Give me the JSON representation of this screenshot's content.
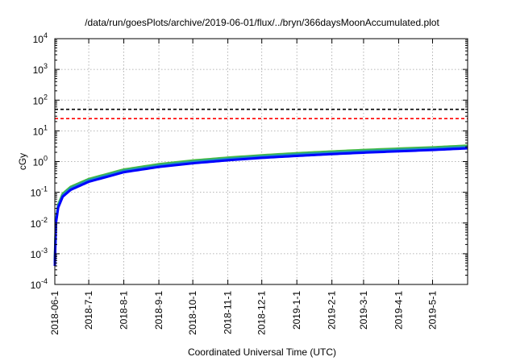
{
  "chart_data": {
    "type": "line",
    "title": "/data/run/goesPlots/archive/2019-06-01/flux/../bryn/366daysMoonAccumulated.plot",
    "xlabel": "Coordinated Universal Time (UTC)",
    "ylabel": "cGy",
    "y_scale": "log",
    "ylim": [
      0.0001,
      10000
    ],
    "xlim": [
      "2018-06-01",
      "2019-06-01"
    ],
    "grid": true,
    "x_ticks": [
      "2018-06-1",
      "2018-7-1",
      "2018-8-1",
      "2018-9-1",
      "2018-10-1",
      "2018-11-1",
      "2018-12-1",
      "2019-1-1",
      "2019-2-1",
      "2019-3-1",
      "2019-4-1",
      "2019-5-1"
    ],
    "x_tick_dates": [
      "2018-06-01",
      "2018-07-01",
      "2018-08-01",
      "2018-09-01",
      "2018-10-01",
      "2018-11-01",
      "2018-12-01",
      "2019-01-01",
      "2019-02-01",
      "2019-03-01",
      "2019-04-01",
      "2019-05-01"
    ],
    "y_ticks": [
      {
        "value": 0.0001,
        "base": "10",
        "exp": "-4"
      },
      {
        "value": 0.001,
        "base": "10",
        "exp": "-3"
      },
      {
        "value": 0.01,
        "base": "10",
        "exp": "-2"
      },
      {
        "value": 0.1,
        "base": "10",
        "exp": "-1"
      },
      {
        "value": 1,
        "base": "10",
        "exp": "0"
      },
      {
        "value": 10,
        "base": "10",
        "exp": "1"
      },
      {
        "value": 100,
        "base": "10",
        "exp": "2"
      },
      {
        "value": 1000,
        "base": "10",
        "exp": "3"
      },
      {
        "value": 10000,
        "base": "10",
        "exp": "4"
      }
    ],
    "reference_lines": [
      {
        "value": 50,
        "color": "#000000",
        "style": "dashed"
      },
      {
        "value": 25,
        "color": "#ff0000",
        "style": "dashed"
      }
    ],
    "series": [
      {
        "color": "#44bb44",
        "x": [
          "2018-06-01",
          "2018-06-02",
          "2018-06-04",
          "2018-06-08",
          "2018-06-15",
          "2018-07-01",
          "2018-08-01",
          "2018-09-01",
          "2018-10-01",
          "2018-11-01",
          "2018-12-01",
          "2019-01-01",
          "2019-02-01",
          "2019-03-01",
          "2019-04-01",
          "2019-05-01",
          "2019-06-01"
        ],
        "values": [
          0.0006,
          0.012,
          0.04,
          0.09,
          0.15,
          0.27,
          0.55,
          0.82,
          1.08,
          1.34,
          1.6,
          1.87,
          2.13,
          2.38,
          2.64,
          2.9,
          3.3
        ]
      },
      {
        "color": "#1f8fbf",
        "x": [
          "2018-06-01",
          "2018-06-02",
          "2018-06-04",
          "2018-06-08",
          "2018-06-15",
          "2018-07-01",
          "2018-08-01",
          "2018-09-01",
          "2018-10-01",
          "2018-11-01",
          "2018-12-01",
          "2019-01-01",
          "2019-02-01",
          "2019-03-01",
          "2019-04-01",
          "2019-05-01",
          "2019-06-01"
        ],
        "values": [
          0.0005,
          0.011,
          0.036,
          0.08,
          0.135,
          0.245,
          0.5,
          0.74,
          0.98,
          1.22,
          1.46,
          1.7,
          1.94,
          2.17,
          2.4,
          2.64,
          3.0
        ]
      },
      {
        "color": "#0000ff",
        "x": [
          "2018-06-01",
          "2018-06-02",
          "2018-06-04",
          "2018-06-08",
          "2018-06-15",
          "2018-07-01",
          "2018-08-01",
          "2018-09-01",
          "2018-10-01",
          "2018-11-01",
          "2018-12-01",
          "2019-01-01",
          "2019-02-01",
          "2019-03-01",
          "2019-04-01",
          "2019-05-01",
          "2019-06-01"
        ],
        "values": [
          0.0004,
          0.01,
          0.032,
          0.072,
          0.12,
          0.22,
          0.45,
          0.67,
          0.88,
          1.1,
          1.32,
          1.53,
          1.75,
          1.95,
          2.16,
          2.38,
          2.7
        ]
      }
    ]
  }
}
